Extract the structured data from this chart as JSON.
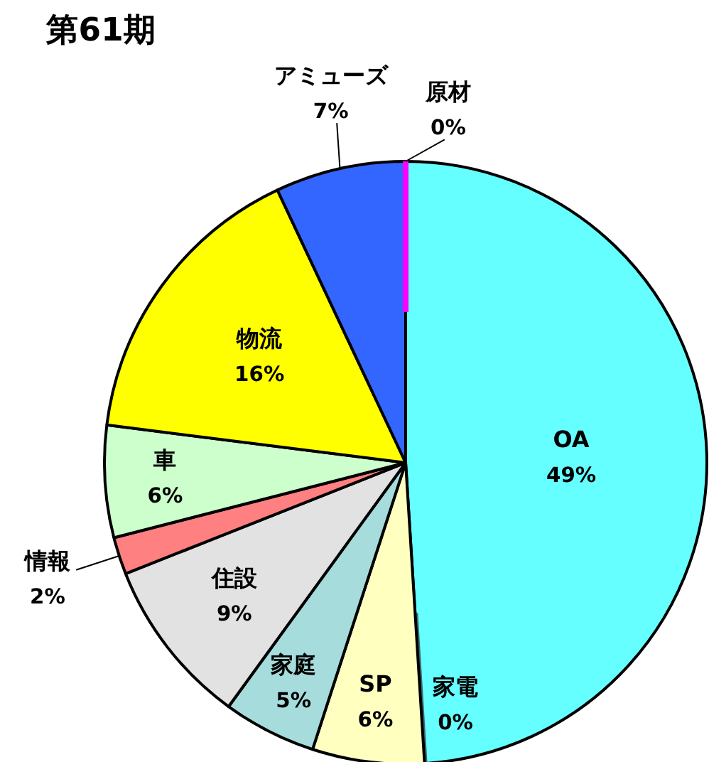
{
  "chart_data": {
    "type": "pie",
    "title": "第61期",
    "categories": [
      "OA",
      "家電",
      "SP",
      "家庭",
      "住設",
      "情報",
      "車",
      "物流",
      "アミューズ",
      "原材"
    ],
    "values": [
      49,
      0,
      6,
      5,
      9,
      2,
      6,
      16,
      7,
      0
    ],
    "value_labels": [
      "49%",
      "0%",
      "6%",
      "5%",
      "9%",
      "2%",
      "6%",
      "16%",
      "7%",
      "0%"
    ],
    "colors": [
      "#66ffff",
      "#3a6b6b",
      "#ffffc0",
      "#a6dcdc",
      "#e2e2e2",
      "#ff8080",
      "#ccffcc",
      "#ffff00",
      "#3366ff",
      "#ff00ff"
    ]
  }
}
